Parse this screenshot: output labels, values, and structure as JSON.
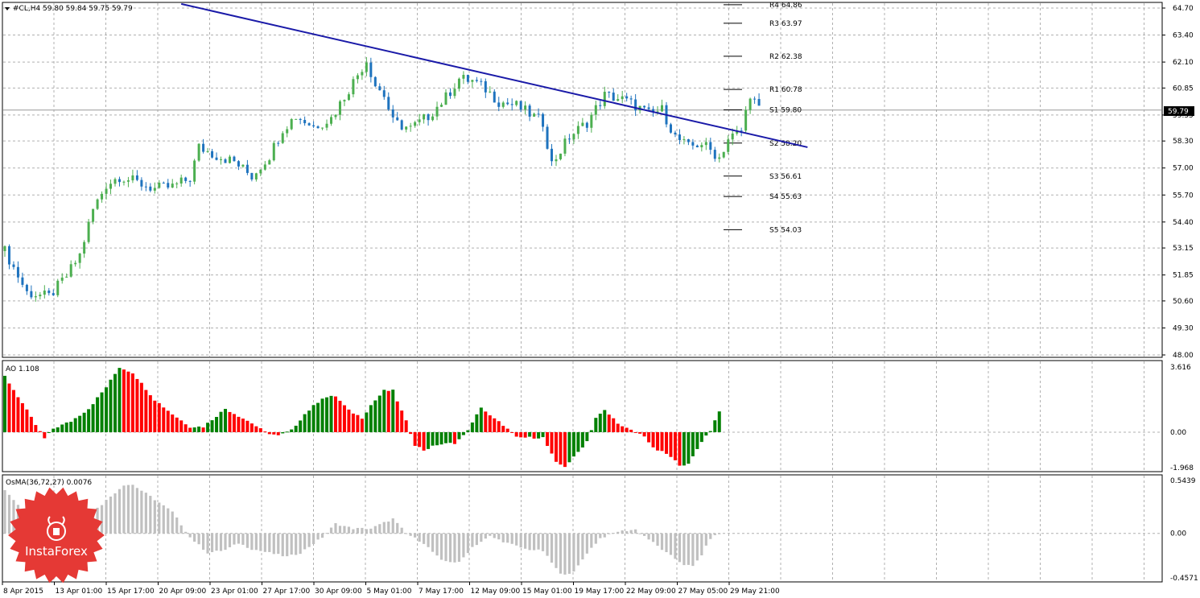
{
  "header": {
    "symbol_line": "#CL,H4  59.80 59.84 59.75 59.79"
  },
  "ao_panel": {
    "label": "AO 1.108"
  },
  "osma_panel": {
    "label": "OsMA(36,72,27) 0.0076"
  },
  "price_badge": "59.79",
  "logo": {
    "text": "InstaForex"
  },
  "colors": {
    "bull_candle": "#4caf50",
    "bear_candle": "#1e73be",
    "trendline": "#1a1aa8",
    "ao_up": "#008000",
    "ao_down": "#ff0000",
    "osma": "#c0c0c0",
    "grid": "#b0b0b0",
    "logo": "#e53935"
  },
  "chart_data": [
    {
      "type": "candlestick",
      "title": "#CL,H4",
      "ohlc_last": {
        "open": 59.8,
        "high": 59.84,
        "low": 59.75,
        "close": 59.79
      },
      "ylim": [
        48.0,
        64.7
      ],
      "y_ticks": [
        "64.70",
        "63.40",
        "62.10",
        "60.85",
        "59.55",
        "58.30",
        "57.00",
        "55.70",
        "54.40",
        "53.15",
        "51.85",
        "50.60",
        "49.30",
        "48.00"
      ],
      "x_ticks": [
        "8 Apr 2015",
        "13 Apr 01:00",
        "15 Apr 17:00",
        "20 Apr 09:00",
        "23 Apr 01:00",
        "27 Apr 17:00",
        "30 Apr 09:00",
        "5 May 01:00",
        "7 May 17:00",
        "12 May 09:00",
        "15 May 01:00",
        "19 May 17:00",
        "22 May 09:00",
        "27 May 05:00",
        "29 May 21:00"
      ],
      "close_path": [
        [
          0,
          53.0
        ],
        [
          5,
          51.0
        ],
        [
          10,
          50.8
        ],
        [
          14,
          51.8
        ],
        [
          17,
          52.8
        ],
        [
          20,
          55.0
        ],
        [
          23,
          56.2
        ],
        [
          26,
          56.6
        ],
        [
          30,
          56.3
        ],
        [
          34,
          56.0
        ],
        [
          38,
          56.1
        ],
        [
          42,
          56.5
        ],
        [
          44,
          58.0
        ],
        [
          48,
          57.6
        ],
        [
          52,
          57.3
        ],
        [
          56,
          56.6
        ],
        [
          60,
          57.6
        ],
        [
          63,
          58.9
        ],
        [
          66,
          59.5
        ],
        [
          70,
          59.0
        ],
        [
          74,
          59.4
        ],
        [
          78,
          60.8
        ],
        [
          82,
          62.2
        ],
        [
          84,
          61.0
        ],
        [
          86,
          60.5
        ],
        [
          88,
          59.2
        ],
        [
          92,
          58.9
        ],
        [
          96,
          59.5
        ],
        [
          100,
          60.4
        ],
        [
          103,
          61.3
        ],
        [
          106,
          61.2
        ],
        [
          109,
          60.8
        ],
        [
          112,
          60.2
        ],
        [
          116,
          60.0
        ],
        [
          119,
          59.6
        ],
        [
          122,
          59.2
        ],
        [
          124,
          57.2
        ],
        [
          128,
          58.5
        ],
        [
          132,
          59.2
        ],
        [
          136,
          60.5
        ],
        [
          140,
          60.3
        ],
        [
          143,
          60.0
        ],
        [
          146,
          59.6
        ],
        [
          149,
          59.8
        ],
        [
          152,
          58.5
        ],
        [
          155,
          58.0
        ],
        [
          158,
          58.2
        ],
        [
          162,
          57.5
        ],
        [
          164,
          58.4
        ],
        [
          167,
          58.8
        ],
        [
          169,
          60.6
        ],
        [
          171,
          59.8
        ]
      ],
      "trendline": {
        "start": [
          40,
          64.9
        ],
        "end": [
          182,
          58.0
        ]
      },
      "pivot_levels": [
        {
          "label": "R4 64.86",
          "value": 64.86
        },
        {
          "label": "R3 63.97",
          "value": 63.97
        },
        {
          "label": "R2 62.38",
          "value": 62.38
        },
        {
          "label": "R1 60.78",
          "value": 60.78
        },
        {
          "label": "S1 59.80",
          "value": 59.8
        },
        {
          "label": "S2 58.20",
          "value": 58.2
        },
        {
          "label": "S3 56.61",
          "value": 56.61
        },
        {
          "label": "S4 55.63",
          "value": 55.63
        },
        {
          "label": "S5 54.03",
          "value": 54.03
        }
      ]
    },
    {
      "type": "bar",
      "title": "AO",
      "ylim": [
        -1.968,
        3.616
      ],
      "y_ticks": [
        "3.616",
        "0.00",
        "-1.968"
      ],
      "path": [
        [
          0,
          3.1
        ],
        [
          4,
          1.6
        ],
        [
          7,
          0.4
        ],
        [
          9,
          -0.35
        ],
        [
          11,
          0.2
        ],
        [
          15,
          0.6
        ],
        [
          19,
          1.3
        ],
        [
          23,
          2.5
        ],
        [
          26,
          3.6
        ],
        [
          29,
          3.3
        ],
        [
          34,
          1.8
        ],
        [
          38,
          1.0
        ],
        [
          42,
          0.3
        ],
        [
          45,
          0.3
        ],
        [
          47,
          0.7
        ],
        [
          50,
          1.3
        ],
        [
          53,
          0.9
        ],
        [
          56,
          0.5
        ],
        [
          59,
          0.0
        ],
        [
          62,
          -0.2
        ],
        [
          65,
          0.1
        ],
        [
          68,
          1.0
        ],
        [
          72,
          1.9
        ],
        [
          75,
          2.0
        ],
        [
          78,
          1.2
        ],
        [
          81,
          0.8
        ],
        [
          83,
          1.5
        ],
        [
          86,
          2.3
        ],
        [
          88,
          2.3
        ],
        [
          91,
          0.6
        ],
        [
          93,
          -0.7
        ],
        [
          95,
          -1.0
        ],
        [
          98,
          -0.7
        ],
        [
          102,
          -0.6
        ],
        [
          104,
          -0.2
        ],
        [
          106,
          0.5
        ],
        [
          108,
          1.4
        ],
        [
          110,
          0.9
        ],
        [
          113,
          0.4
        ],
        [
          116,
          -0.3
        ],
        [
          119,
          -0.3
        ],
        [
          122,
          -0.3
        ],
        [
          125,
          -1.7
        ],
        [
          127,
          -1.9
        ],
        [
          129,
          -1.4
        ],
        [
          132,
          -0.5
        ],
        [
          134,
          0.8
        ],
        [
          136,
          1.2
        ],
        [
          140,
          0.3
        ],
        [
          142,
          0.1
        ],
        [
          145,
          -0.2
        ],
        [
          147,
          -0.9
        ],
        [
          150,
          -1.2
        ],
        [
          153,
          -1.8
        ],
        [
          155,
          -1.8
        ],
        [
          158,
          -0.5
        ],
        [
          160,
          0.1
        ],
        [
          162,
          1.2
        ]
      ]
    },
    {
      "type": "bar",
      "title": "OsMA(36,72,27)",
      "ylim": [
        -0.4571,
        0.5439
      ],
      "y_ticks": [
        "0.5439",
        "0.00",
        "-0.4571"
      ],
      "path": [
        [
          0,
          0.45
        ],
        [
          4,
          0.25
        ],
        [
          9,
          0.05
        ],
        [
          13,
          0.05
        ],
        [
          16,
          0.12
        ],
        [
          22,
          0.3
        ],
        [
          27,
          0.5
        ],
        [
          29,
          0.5
        ],
        [
          33,
          0.38
        ],
        [
          38,
          0.22
        ],
        [
          42,
          -0.04
        ],
        [
          46,
          -0.2
        ],
        [
          50,
          -0.17
        ],
        [
          53,
          -0.1
        ],
        [
          56,
          -0.16
        ],
        [
          60,
          -0.2
        ],
        [
          64,
          -0.24
        ],
        [
          67,
          -0.2
        ],
        [
          72,
          -0.04
        ],
        [
          75,
          0.1
        ],
        [
          79,
          0.05
        ],
        [
          83,
          0.05
        ],
        [
          88,
          0.15
        ],
        [
          91,
          0.0
        ],
        [
          95,
          -0.1
        ],
        [
          99,
          -0.28
        ],
        [
          103,
          -0.3
        ],
        [
          106,
          -0.14
        ],
        [
          110,
          -0.03
        ],
        [
          114,
          -0.1
        ],
        [
          118,
          -0.16
        ],
        [
          122,
          -0.18
        ],
        [
          126,
          -0.42
        ],
        [
          129,
          -0.4
        ],
        [
          132,
          -0.2
        ],
        [
          135,
          -0.05
        ],
        [
          139,
          0.02
        ],
        [
          143,
          0.04
        ],
        [
          146,
          -0.06
        ],
        [
          150,
          -0.2
        ],
        [
          154,
          -0.32
        ],
        [
          156,
          -0.34
        ],
        [
          158,
          -0.22
        ],
        [
          160,
          -0.05
        ],
        [
          162,
          0.0
        ]
      ]
    }
  ]
}
